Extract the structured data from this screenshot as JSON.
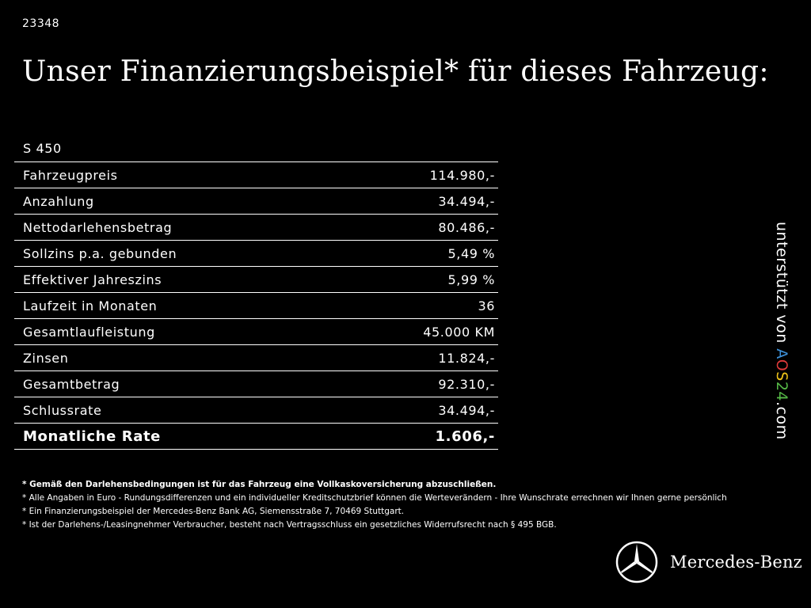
{
  "ref_id": "23348",
  "headline": "Unser Finanzierungsbeispiel* für dieses Fahrzeug:",
  "model": "S 450",
  "rows": [
    {
      "label": "Fahrzeugpreis",
      "value": "114.980,-"
    },
    {
      "label": "Anzahlung",
      "value": "34.494,-"
    },
    {
      "label": "Nettodarlehensbetrag",
      "value": "80.486,-"
    },
    {
      "label": "Sollzins p.a. gebunden",
      "value": "5,49 %"
    },
    {
      "label": "Effektiver Jahreszins",
      "value": "5,99 %"
    },
    {
      "label": "Laufzeit in Monaten",
      "value": "36"
    },
    {
      "label": "Gesamtlaufleistung",
      "value": "45.000 KM"
    },
    {
      "label": "Zinsen",
      "value": "11.824,-"
    },
    {
      "label": "Gesamtbetrag",
      "value": "92.310,-"
    },
    {
      "label": "Schlussrate",
      "value": "34.494,-"
    }
  ],
  "total": {
    "label": "Monatliche Rate",
    "value": "1.606,-"
  },
  "notes": [
    "* Gemäß den Darlehensbedingungen ist für das Fahrzeug eine Vollkaskoversicherung abzuschließen.",
    "* Alle Angaben in Euro - Rundungsdifferenzen und ein individueller Kreditschutzbrief können die Werteverändern - Ihre Wunschrate errechnen wir Ihnen gerne persönlich",
    "* Ein Finanzierungsbeispiel der Mercedes-Benz Bank AG, Siemensstraße 7, 70469 Stuttgart.",
    "* Ist der Darlehens-/Leasingnehmer Verbraucher, besteht nach Vertragsschluss ein gesetzliches Widerrufsrecht nach § 495 BGB."
  ],
  "side_credit": {
    "prefix": "unterstützt von ",
    "logo_a": "A",
    "logo_o": "O",
    "logo_s": "S",
    "logo_24": "24",
    "suffix": ".com"
  },
  "brand": {
    "name": "Mercedes-Benz",
    "logo_icon": "mercedes-star-icon"
  },
  "colors": {
    "background": "#000000",
    "text": "#ffffff"
  }
}
